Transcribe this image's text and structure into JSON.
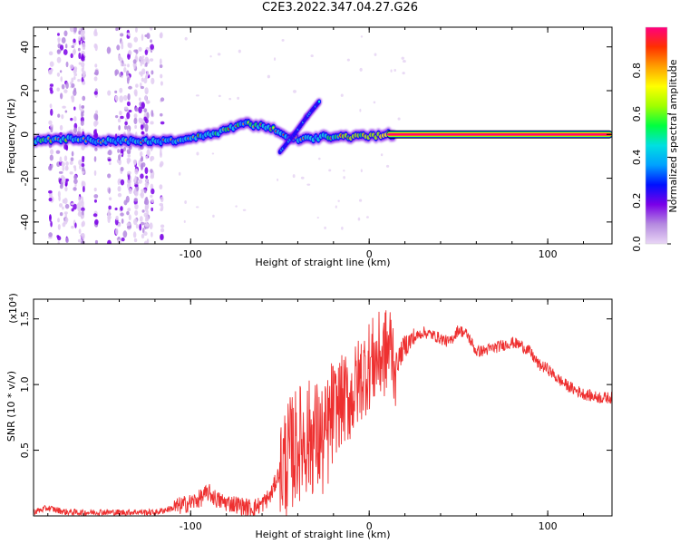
{
  "title": "C2E3.2022.347.04.27.G26",
  "chart_data": [
    {
      "type": "heatmap",
      "xlabel": "Height of straight line (km)",
      "ylabel": "Frequency (Hz)",
      "xlim": [
        -188,
        136
      ],
      "ylim": [
        -50,
        49
      ],
      "x_ticks": [
        -100,
        0,
        100
      ],
      "y_ticks": [
        40,
        20,
        0,
        -20,
        -40
      ],
      "colorbar": {
        "label": "Normalized spectral amplitude",
        "range": [
          0.0,
          1.0
        ],
        "ticks": [
          0.0,
          0.2,
          0.4,
          0.6,
          0.8
        ],
        "colormap": [
          "#e9d6f5",
          "#b58ae0",
          "#7a00e8",
          "#0010ff",
          "#00a0ff",
          "#00e0e0",
          "#00ff40",
          "#a0ff00",
          "#ffff00",
          "#ffa000",
          "#ff3000",
          "#ff007f"
        ]
      },
      "ridge": [
        {
          "x": -188,
          "y": -3,
          "amp": 0.5
        },
        {
          "x": -170,
          "y": -2,
          "amp": 0.55
        },
        {
          "x": -150,
          "y": -3,
          "amp": 0.45
        },
        {
          "x": -130,
          "y": -3,
          "amp": 0.45
        },
        {
          "x": -110,
          "y": -3,
          "amp": 0.5
        },
        {
          "x": -95,
          "y": -1,
          "amp": 0.55
        },
        {
          "x": -80,
          "y": 2,
          "amp": 0.6
        },
        {
          "x": -70,
          "y": 5,
          "amp": 0.55
        },
        {
          "x": -55,
          "y": 3,
          "amp": 0.6
        },
        {
          "x": -45,
          "y": -2,
          "amp": 0.45
        },
        {
          "x": -35,
          "y": -2,
          "amp": 0.5
        },
        {
          "x": -25,
          "y": -1,
          "amp": 0.55
        },
        {
          "x": -15,
          "y": -1,
          "amp": 0.7
        },
        {
          "x": 0,
          "y": -1,
          "amp": 0.8
        },
        {
          "x": 10,
          "y": 0,
          "amp": 0.85
        },
        {
          "x": 136,
          "y": 0,
          "amp": 0.95
        }
      ],
      "branch": [
        {
          "x": -50,
          "y": -8
        },
        {
          "x": -42,
          "y": 0
        },
        {
          "x": -35,
          "y": 8
        },
        {
          "x": -28,
          "y": 15
        }
      ]
    },
    {
      "type": "line",
      "xlabel": "Height of straight line (km)",
      "ylabel": "SNR (10 * v/v)",
      "y_multiplier": "(x10⁴)",
      "xlim": [
        -188,
        136
      ],
      "ylim": [
        0,
        16500
      ],
      "x_ticks": [
        -100,
        0,
        100
      ],
      "y_ticks": [
        0.5,
        1.0,
        1.5
      ],
      "line_color": "#ee3030",
      "series": [
        {
          "x": [
            -188,
            -180,
            -170,
            -160,
            -150,
            -140,
            -130,
            -120,
            -110,
            -100,
            -95,
            -90,
            -85,
            -80,
            -75,
            -70,
            -65,
            -60,
            -55,
            -50,
            -45,
            -40,
            -35,
            -30,
            -25,
            -20,
            -15,
            -10,
            -5,
            0,
            5,
            10,
            12,
            15,
            20,
            25,
            30,
            35,
            40,
            45,
            50,
            55,
            60,
            65,
            70,
            75,
            80,
            85,
            90,
            95,
            100,
            105,
            110,
            115,
            120,
            125,
            130,
            136
          ],
          "y": [
            300,
            600,
            300,
            250,
            300,
            250,
            300,
            250,
            600,
            1000,
            1300,
            1800,
            1200,
            1000,
            900,
            700,
            600,
            900,
            1600,
            3500,
            4500,
            5500,
            6000,
            6000,
            5500,
            8000,
            8800,
            9000,
            10500,
            11500,
            12000,
            12500,
            13000,
            11500,
            13000,
            13500,
            14000,
            13800,
            13500,
            13200,
            14200,
            13800,
            12500,
            12600,
            12800,
            13000,
            13200,
            13000,
            12500,
            11500,
            11200,
            10500,
            10000,
            9600,
            9300,
            9100,
            9000,
            9000
          ]
        }
      ]
    }
  ]
}
